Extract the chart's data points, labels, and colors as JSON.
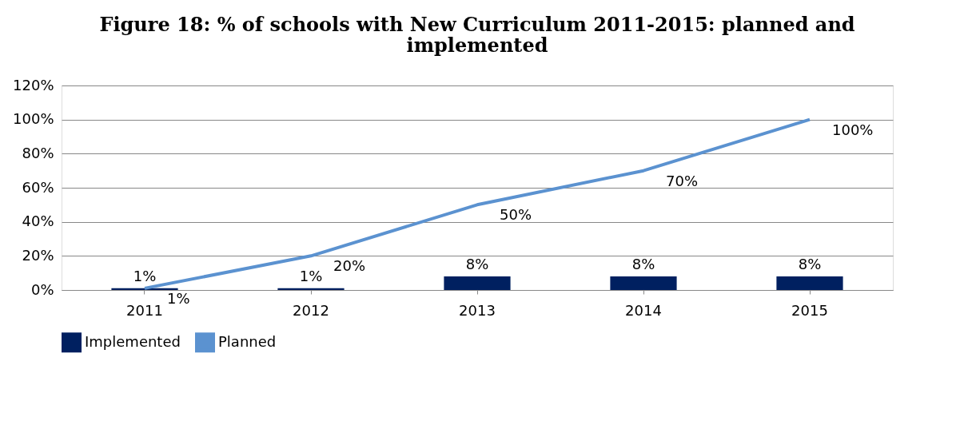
{
  "chart_data": {
    "type": "bar",
    "title": "Figure 18: % of schools with New Curriculum 2011-2015: planned and implemented",
    "categories": [
      "2011",
      "2012",
      "2013",
      "2014",
      "2015"
    ],
    "series": [
      {
        "name": "Implemented",
        "color": "#002060",
        "values": [
          1,
          1,
          8,
          8,
          8
        ],
        "value_labels": [
          "1%",
          "1%",
          "8%",
          "8%",
          "8%"
        ]
      },
      {
        "name": "Planned",
        "type": "line",
        "color": "#5b92d0",
        "values": [
          1,
          20,
          50,
          70,
          100
        ],
        "value_labels": [
          "1%",
          "20%",
          "50%",
          "70%",
          "100%"
        ]
      }
    ],
    "ylim": [
      0,
      120
    ],
    "yticks": [
      {
        "value": 0,
        "label": "0%"
      },
      {
        "value": 20,
        "label": "20%"
      },
      {
        "value": 40,
        "label": "40%"
      },
      {
        "value": 60,
        "label": "60%"
      },
      {
        "value": 80,
        "label": "80%"
      },
      {
        "value": 100,
        "label": "100%"
      },
      {
        "value": 120,
        "label": "120%"
      }
    ],
    "grid": "y",
    "legend": "bottom",
    "marker": "none",
    "line_style": "solid"
  }
}
